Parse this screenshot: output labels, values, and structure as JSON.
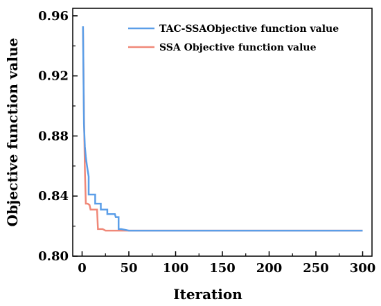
{
  "chart_data": {
    "type": "line",
    "xlabel": "Iteration",
    "ylabel": "Objective function value",
    "xlim": [
      -10,
      310
    ],
    "ylim": [
      0.8,
      0.965
    ],
    "xticks": [
      0,
      50,
      100,
      150,
      200,
      250,
      300
    ],
    "yticks": [
      0.8,
      0.84,
      0.88,
      0.92,
      0.96
    ],
    "grid": false,
    "legend_position": "top-right",
    "series": [
      {
        "name": "TAC-SSAObjective function value",
        "color": "#5b9ee8",
        "x": [
          1,
          2,
          3,
          4,
          5,
          6,
          7,
          7,
          9,
          9,
          13,
          14,
          14,
          16,
          17,
          20,
          20,
          23,
          27,
          27,
          30,
          35,
          36,
          38,
          39,
          39,
          42,
          50,
          300
        ],
        "y": [
          0.953,
          0.888,
          0.873,
          0.866,
          0.861,
          0.857,
          0.853,
          0.841,
          0.841,
          0.841,
          0.841,
          0.841,
          0.835,
          0.835,
          0.835,
          0.835,
          0.831,
          0.831,
          0.831,
          0.828,
          0.828,
          0.828,
          0.826,
          0.826,
          0.826,
          0.818,
          0.818,
          0.817,
          0.817
        ]
      },
      {
        "name": "SSA Objective function value",
        "color": "#f08878",
        "x": [
          1,
          2,
          3,
          4,
          5,
          6,
          8,
          9,
          10,
          11,
          16,
          17,
          20,
          22,
          25,
          50,
          300
        ],
        "y": [
          0.953,
          0.895,
          0.858,
          0.835,
          0.835,
          0.835,
          0.834,
          0.831,
          0.831,
          0.831,
          0.831,
          0.818,
          0.818,
          0.818,
          0.817,
          0.817,
          0.817
        ]
      }
    ]
  }
}
